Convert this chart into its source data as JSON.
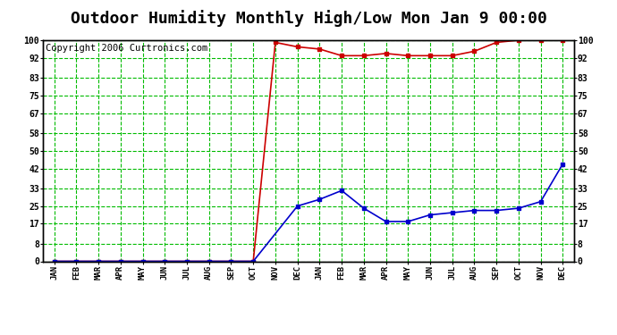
{
  "title": "Outdoor Humidity Monthly High/Low Mon Jan 9 00:00",
  "copyright": "Copyright 2006 Curtronics.com",
  "x_labels": [
    "JAN",
    "FEB",
    "MAR",
    "APR",
    "MAY",
    "JUN",
    "JUL",
    "AUG",
    "SEP",
    "OCT",
    "NOV",
    "DEC",
    "JAN",
    "FEB",
    "MAR",
    "APR",
    "MAY",
    "JUN",
    "JUL",
    "AUG",
    "SEP",
    "OCT",
    "NOV",
    "DEC"
  ],
  "high_values": [
    0,
    0,
    0,
    0,
    0,
    0,
    0,
    0,
    0,
    0,
    99,
    97,
    96,
    93,
    93,
    94,
    93,
    93,
    93,
    95,
    99,
    100,
    100,
    100
  ],
  "low_values": [
    0,
    0,
    0,
    0,
    0,
    0,
    0,
    0,
    0,
    0,
    null,
    25,
    28,
    32,
    24,
    18,
    18,
    21,
    22,
    23,
    23,
    24,
    27,
    44
  ],
  "yticks": [
    0,
    8,
    17,
    25,
    33,
    42,
    50,
    58,
    67,
    75,
    83,
    92,
    100
  ],
  "ylim": [
    0,
    100
  ],
  "bg_color": "#ffffff",
  "plot_bg_color": "#ffffff",
  "grid_color": "#00bb00",
  "high_color": "#cc0000",
  "low_color": "#0000cc",
  "title_fontsize": 13,
  "copyright_fontsize": 7.5
}
